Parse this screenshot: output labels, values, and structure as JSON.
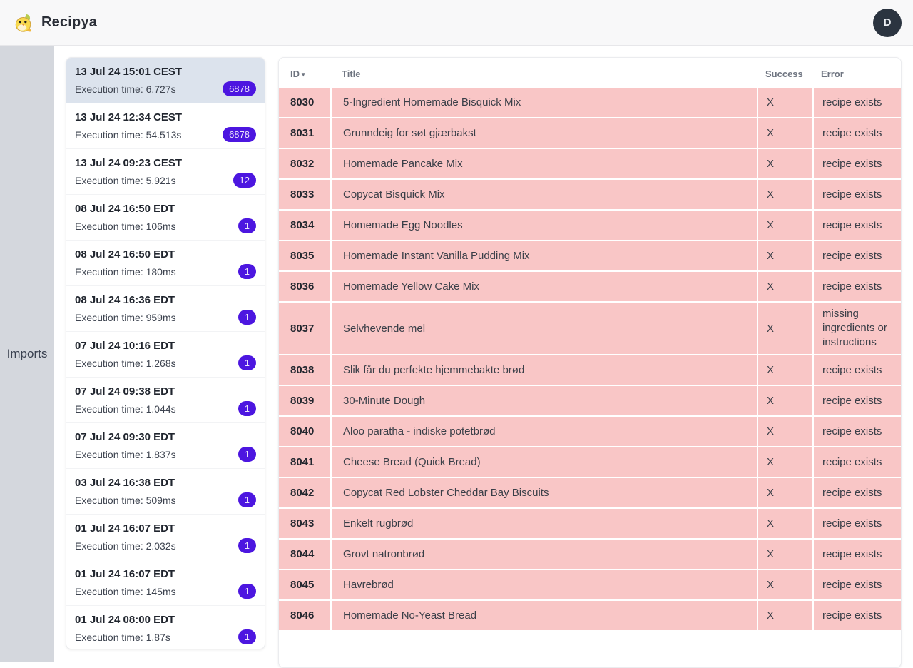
{
  "header": {
    "app_title": "Recipya",
    "avatar_initial": "D"
  },
  "sidebar": {
    "label": "Imports"
  },
  "imports_list": {
    "items": [
      {
        "date": "13 Jul 24 15:01 CEST",
        "execution": "Execution time: 6.727s",
        "count": "6878",
        "selected": true
      },
      {
        "date": "13 Jul 24 12:34 CEST",
        "execution": "Execution time: 54.513s",
        "count": "6878",
        "selected": false
      },
      {
        "date": "13 Jul 24 09:23 CEST",
        "execution": "Execution time: 5.921s",
        "count": "12",
        "selected": false
      },
      {
        "date": "08 Jul 24 16:50 EDT",
        "execution": "Execution time: 106ms",
        "count": "1",
        "selected": false
      },
      {
        "date": "08 Jul 24 16:50 EDT",
        "execution": "Execution time: 180ms",
        "count": "1",
        "selected": false
      },
      {
        "date": "08 Jul 24 16:36 EDT",
        "execution": "Execution time: 959ms",
        "count": "1",
        "selected": false
      },
      {
        "date": "07 Jul 24 10:16 EDT",
        "execution": "Execution time: 1.268s",
        "count": "1",
        "selected": false
      },
      {
        "date": "07 Jul 24 09:38 EDT",
        "execution": "Execution time: 1.044s",
        "count": "1",
        "selected": false
      },
      {
        "date": "07 Jul 24 09:30 EDT",
        "execution": "Execution time: 1.837s",
        "count": "1",
        "selected": false
      },
      {
        "date": "03 Jul 24 16:38 EDT",
        "execution": "Execution time: 509ms",
        "count": "1",
        "selected": false
      },
      {
        "date": "01 Jul 24 16:07 EDT",
        "execution": "Execution time: 2.032s",
        "count": "1",
        "selected": false
      },
      {
        "date": "01 Jul 24 16:07 EDT",
        "execution": "Execution time: 145ms",
        "count": "1",
        "selected": false
      },
      {
        "date": "01 Jul 24 08:00 EDT",
        "execution": "Execution time: 1.87s",
        "count": "1",
        "selected": false
      }
    ]
  },
  "results_table": {
    "columns": [
      "ID",
      "Title",
      "Success",
      "Error"
    ],
    "sort_indicator": "▾",
    "rows": [
      {
        "id": "8030",
        "title": "5-Ingredient Homemade Bisquick Mix",
        "success": "X",
        "error": "recipe exists"
      },
      {
        "id": "8031",
        "title": "Grunndeig for søt gjærbakst",
        "success": "X",
        "error": "recipe exists"
      },
      {
        "id": "8032",
        "title": "Homemade Pancake Mix",
        "success": "X",
        "error": "recipe exists"
      },
      {
        "id": "8033",
        "title": "Copycat Bisquick Mix",
        "success": "X",
        "error": "recipe exists"
      },
      {
        "id": "8034",
        "title": "Homemade Egg Noodles",
        "success": "X",
        "error": "recipe exists"
      },
      {
        "id": "8035",
        "title": "Homemade Instant Vanilla Pudding Mix",
        "success": "X",
        "error": "recipe exists"
      },
      {
        "id": "8036",
        "title": "Homemade Yellow Cake Mix",
        "success": "X",
        "error": "recipe exists"
      },
      {
        "id": "8037",
        "title": "Selvhevende mel",
        "success": "X",
        "error": "missing ingredients or instructions"
      },
      {
        "id": "8038",
        "title": "Slik får du perfekte hjemmebakte brød",
        "success": "X",
        "error": "recipe exists"
      },
      {
        "id": "8039",
        "title": "30-Minute Dough",
        "success": "X",
        "error": "recipe exists"
      },
      {
        "id": "8040",
        "title": "Aloo paratha - indiske potetbrød",
        "success": "X",
        "error": "recipe exists"
      },
      {
        "id": "8041",
        "title": "Cheese Bread (Quick Bread)",
        "success": "X",
        "error": "recipe exists"
      },
      {
        "id": "8042",
        "title": "Copycat Red Lobster Cheddar Bay Biscuits",
        "success": "X",
        "error": "recipe exists"
      },
      {
        "id": "8043",
        "title": "Enkelt rugbrød",
        "success": "X",
        "error": "recipe exists"
      },
      {
        "id": "8044",
        "title": "Grovt natronbrød",
        "success": "X",
        "error": "recipe exists"
      },
      {
        "id": "8045",
        "title": "Havrebrød",
        "success": "X",
        "error": "recipe exists"
      },
      {
        "id": "8046",
        "title": "Homemade No-Yeast Bread",
        "success": "X",
        "error": "recipe exists"
      }
    ]
  },
  "colors": {
    "badge": "#4c16e0",
    "row_error_bg": "#f9c6c6",
    "selected_item_bg": "#dce3ed",
    "sidebar_bg": "#d4d7dd",
    "avatar_bg": "#2b3440"
  }
}
